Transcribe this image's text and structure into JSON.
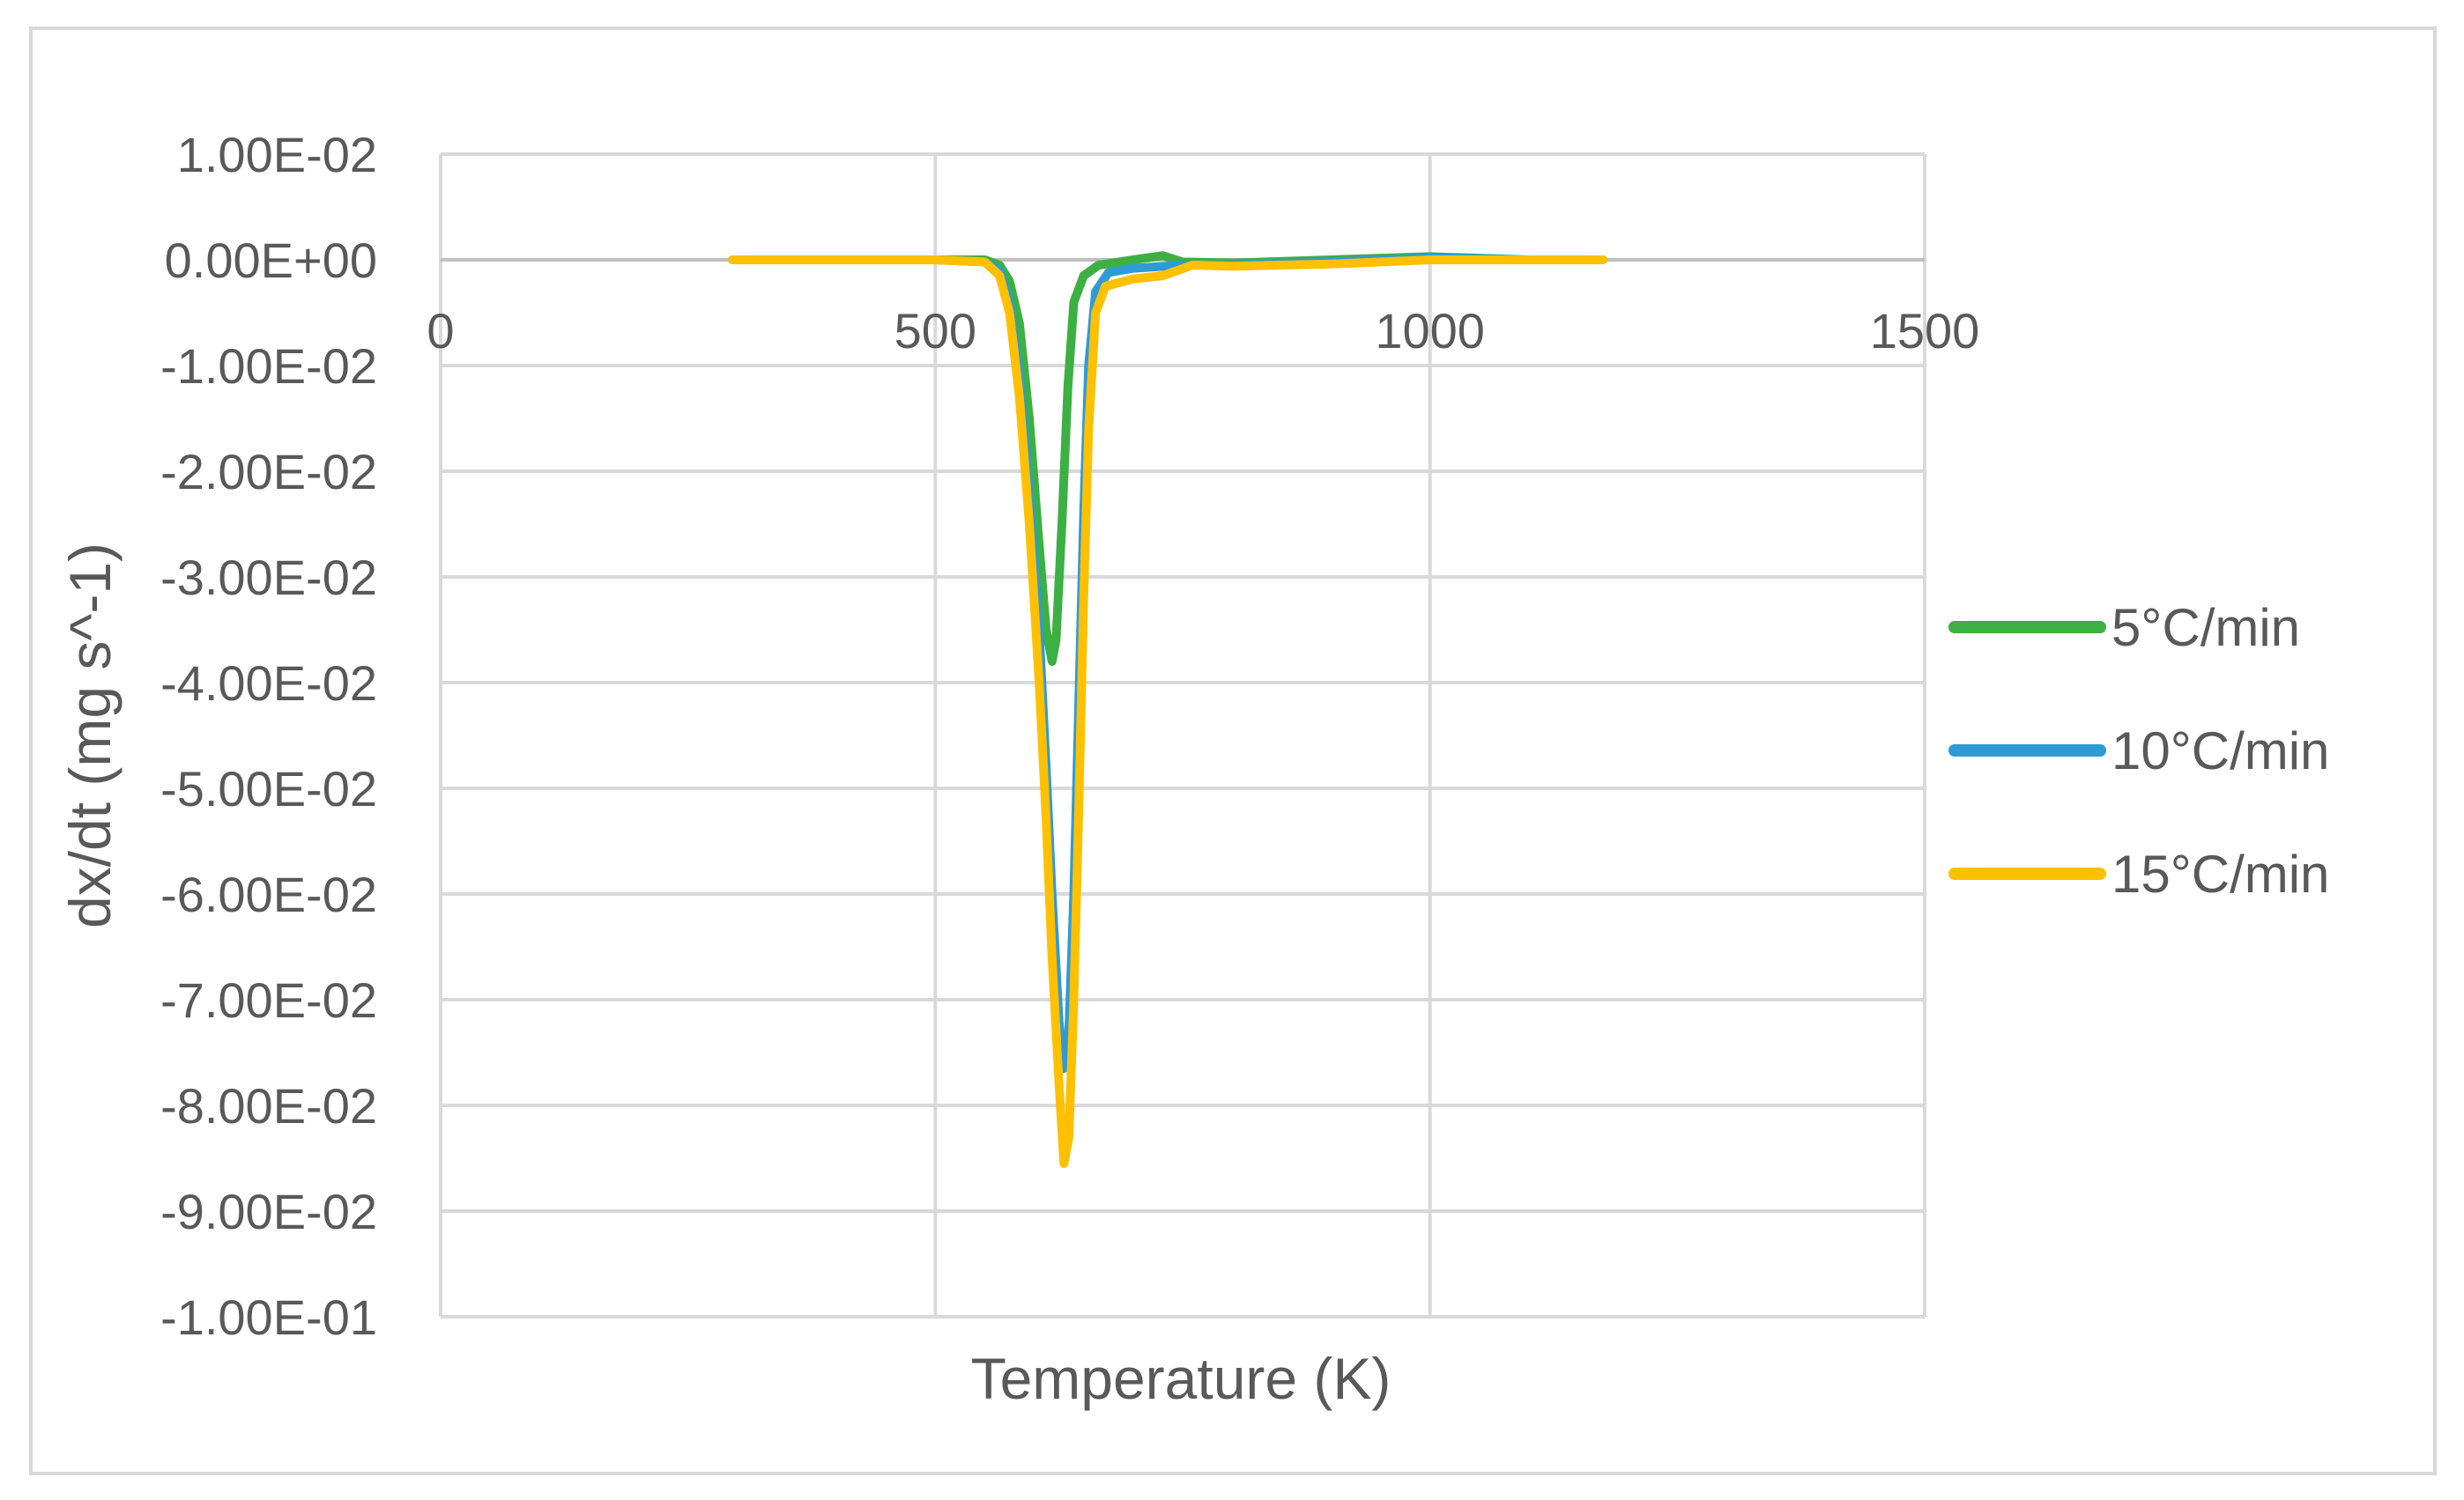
{
  "chart_data": {
    "type": "line",
    "title": "",
    "xlabel": "Temperature (K)",
    "ylabel": "dx/dt (mg s^-1)",
    "xlim": [
      0,
      1500
    ],
    "ylim": [
      -0.1,
      0.01
    ],
    "x_ticks": [
      0,
      500,
      1000,
      1500
    ],
    "x_tick_labels": [
      "0",
      "500",
      "1000",
      "1500"
    ],
    "y_ticks": [
      0.01,
      0,
      -0.01,
      -0.02,
      -0.03,
      -0.04,
      -0.05,
      -0.06,
      -0.07,
      -0.08,
      -0.09,
      -0.1
    ],
    "y_tick_labels": [
      "1.00E-02",
      "0.00E+00",
      "-1.00E-02",
      "-2.00E-02",
      "-3.00E-02",
      "-4.00E-02",
      "-5.00E-02",
      "-6.00E-02",
      "-7.00E-02",
      "-8.00E-02",
      "-9.00E-02",
      "-1.00E-01"
    ],
    "grid": true,
    "legend_position": "right",
    "series": [
      {
        "name": "5°C/min",
        "color": "#3cb043",
        "points": [
          [
            295,
            0.0
          ],
          [
            400,
            0.0
          ],
          [
            500,
            0.0
          ],
          [
            550,
            0.0
          ],
          [
            565,
            -0.0005
          ],
          [
            575,
            -0.002
          ],
          [
            585,
            -0.006
          ],
          [
            595,
            -0.015
          ],
          [
            605,
            -0.027
          ],
          [
            612,
            -0.035
          ],
          [
            618,
            -0.038
          ],
          [
            622,
            -0.036
          ],
          [
            628,
            -0.025
          ],
          [
            634,
            -0.012
          ],
          [
            640,
            -0.004
          ],
          [
            650,
            -0.0015
          ],
          [
            665,
            -0.0005
          ],
          [
            700,
            0.0
          ],
          [
            730,
            0.0004
          ],
          [
            750,
            -0.0002
          ],
          [
            800,
            -0.0003
          ],
          [
            900,
            0.0
          ],
          [
            1000,
            0.0003
          ],
          [
            1100,
            0.0
          ],
          [
            1175,
            0.0
          ]
        ]
      },
      {
        "name": "10°C/min",
        "color": "#2e9bd6",
        "points": [
          [
            295,
            0.0
          ],
          [
            400,
            0.0
          ],
          [
            500,
            0.0
          ],
          [
            550,
            -0.0002
          ],
          [
            565,
            -0.001
          ],
          [
            575,
            -0.004
          ],
          [
            585,
            -0.011
          ],
          [
            595,
            -0.022
          ],
          [
            605,
            -0.035
          ],
          [
            612,
            -0.048
          ],
          [
            618,
            -0.06
          ],
          [
            625,
            -0.072
          ],
          [
            630,
            -0.0765
          ],
          [
            635,
            -0.073
          ],
          [
            640,
            -0.06
          ],
          [
            645,
            -0.042
          ],
          [
            650,
            -0.024
          ],
          [
            655,
            -0.01
          ],
          [
            662,
            -0.003
          ],
          [
            675,
            -0.0012
          ],
          [
            700,
            -0.0008
          ],
          [
            750,
            -0.0005
          ],
          [
            800,
            -0.0005
          ],
          [
            900,
            -0.0002
          ],
          [
            1000,
            0.0002
          ],
          [
            1100,
            0.0
          ],
          [
            1175,
            0.0
          ]
        ]
      },
      {
        "name": "15°C/min",
        "color": "#ffc000",
        "points": [
          [
            295,
            0.0
          ],
          [
            400,
            0.0
          ],
          [
            500,
            0.0
          ],
          [
            550,
            -0.0002
          ],
          [
            565,
            -0.0015
          ],
          [
            575,
            -0.005
          ],
          [
            585,
            -0.013
          ],
          [
            595,
            -0.025
          ],
          [
            605,
            -0.04
          ],
          [
            612,
            -0.053
          ],
          [
            618,
            -0.066
          ],
          [
            625,
            -0.078
          ],
          [
            630,
            -0.0855
          ],
          [
            635,
            -0.083
          ],
          [
            640,
            -0.07
          ],
          [
            645,
            -0.052
          ],
          [
            650,
            -0.032
          ],
          [
            655,
            -0.016
          ],
          [
            662,
            -0.005
          ],
          [
            672,
            -0.0025
          ],
          [
            700,
            -0.0018
          ],
          [
            730,
            -0.0015
          ],
          [
            760,
            -0.0005
          ],
          [
            800,
            -0.0006
          ],
          [
            900,
            -0.0004
          ],
          [
            1000,
            0.0
          ],
          [
            1100,
            0.0
          ],
          [
            1175,
            0.0
          ]
        ]
      }
    ]
  }
}
